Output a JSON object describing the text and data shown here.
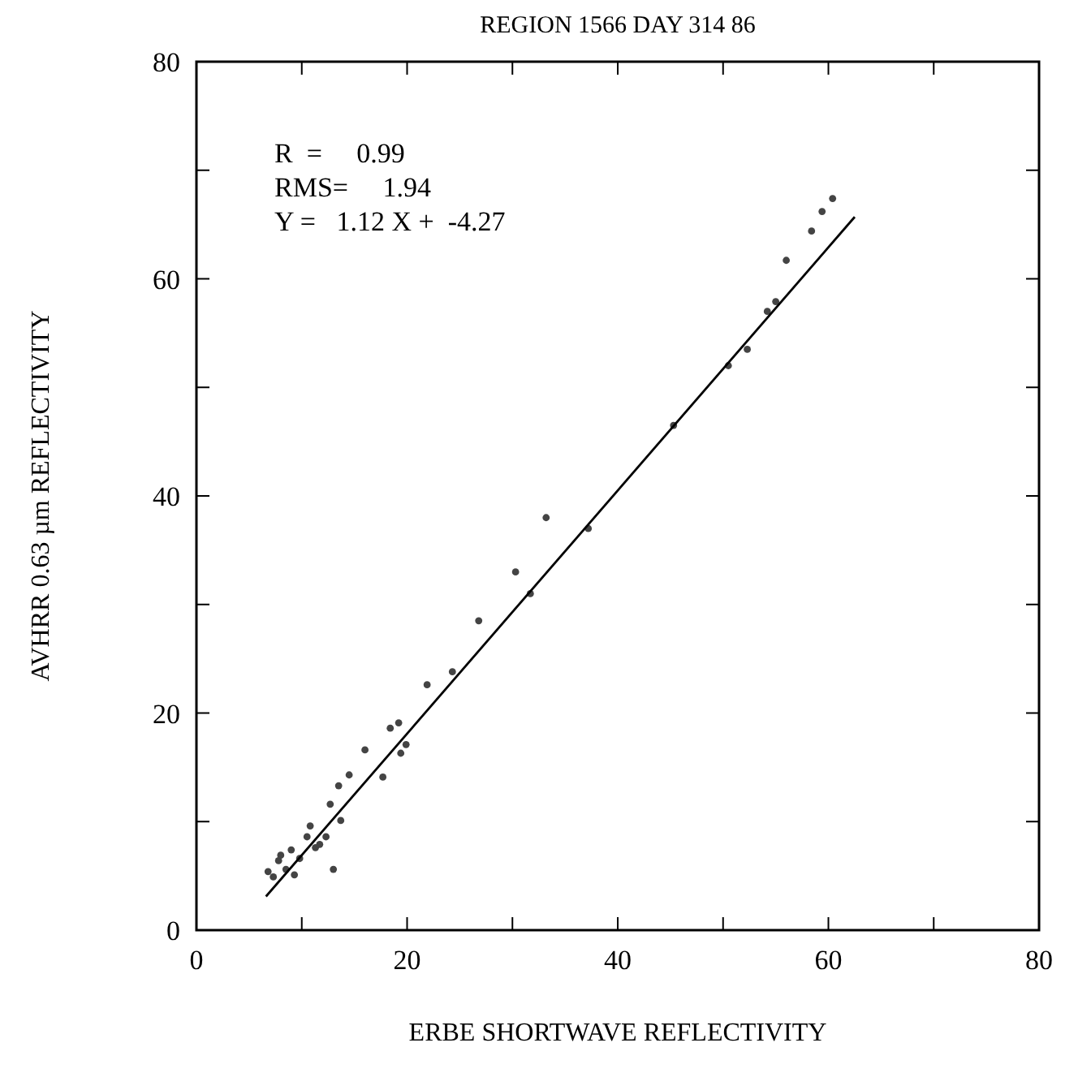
{
  "chart_data": {
    "type": "scatter",
    "title": "REGION 1566 DAY 314 86",
    "xlabel": "ERBE SHORTWAVE REFLECTIVITY",
    "ylabel": "AVHRR 0.63 µm REFLECTIVITY",
    "annotations": [
      "R  =     0.99",
      "RMS=     1.94",
      "Y =   1.12 X +  -4.27"
    ],
    "xlim": [
      0,
      80
    ],
    "ylim": [
      0,
      80
    ],
    "xticks": [
      0,
      {
        "value": 10,
        "label": null
      },
      20,
      {
        "value": 30,
        "label": null
      },
      40,
      {
        "value": 50,
        "label": null
      },
      60,
      {
        "value": 70,
        "label": null
      },
      80
    ],
    "yticks": [
      0,
      {
        "value": 10,
        "label": null
      },
      20,
      {
        "value": 30,
        "label": null
      },
      40,
      {
        "value": 50,
        "label": null
      },
      60,
      {
        "value": 70,
        "label": null
      },
      80
    ],
    "grid": false,
    "marker": "circle",
    "series": [
      {
        "color": "#444444",
        "x": [
          6.8,
          7.3,
          7.8,
          8.0,
          8.5,
          9.0,
          9.3,
          9.8,
          10.5,
          10.8,
          11.3,
          11.7,
          12.3,
          13.0,
          12.7,
          13.5,
          13.7,
          14.5,
          16.0,
          17.7,
          18.4,
          19.2,
          19.4,
          19.9,
          21.9,
          24.3,
          26.8,
          30.3,
          31.7,
          33.2,
          37.2,
          45.3,
          50.5,
          52.3,
          54.2,
          55.0,
          56.0,
          58.4,
          59.4,
          60.4
        ],
        "values": [
          5.4,
          4.9,
          6.4,
          6.9,
          5.6,
          7.4,
          5.1,
          6.6,
          8.6,
          9.6,
          7.6,
          7.9,
          8.6,
          5.6,
          11.6,
          13.3,
          10.1,
          14.3,
          16.6,
          14.1,
          18.6,
          19.1,
          16.3,
          17.1,
          22.6,
          23.8,
          28.5,
          33.0,
          31.0,
          38.0,
          37.0,
          46.5,
          52.0,
          53.5,
          57.0,
          57.9,
          61.7,
          64.4,
          66.2,
          67.4
        ]
      },
      {
        "type": "line",
        "color": "#000000",
        "marker": "none",
        "line_style": "solid",
        "x": [
          6.6,
          62.5
        ],
        "values": [
          3.1,
          65.7
        ]
      }
    ]
  }
}
